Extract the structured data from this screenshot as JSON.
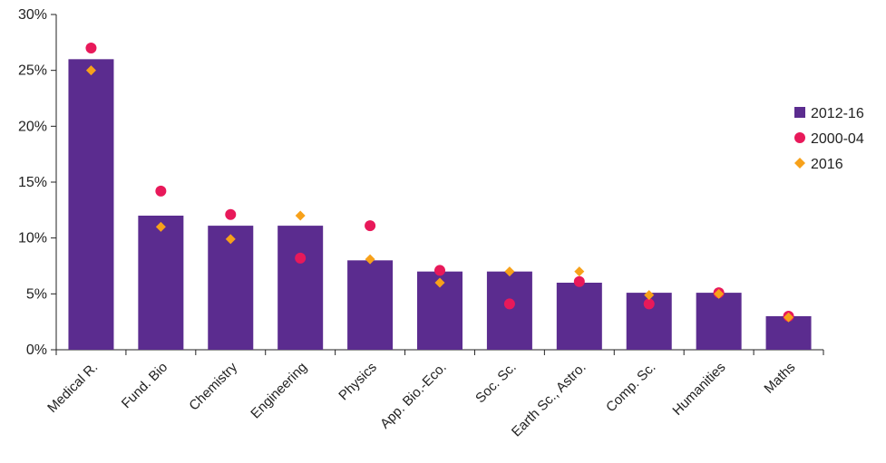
{
  "chart_data": {
    "type": "bar",
    "title": "",
    "xlabel": "",
    "ylabel": "",
    "ylim": [
      0,
      30
    ],
    "yticks": [
      {
        "value": 0,
        "label": "0%"
      },
      {
        "value": 5,
        "label": "5%"
      },
      {
        "value": 10,
        "label": "10%"
      },
      {
        "value": 15,
        "label": "15%"
      },
      {
        "value": 20,
        "label": "20%"
      },
      {
        "value": 25,
        "label": "25%"
      },
      {
        "value": 30,
        "label": "30%"
      }
    ],
    "grid": false,
    "legend_position": "right",
    "categories": [
      "Medical R.",
      "Fund. Bio",
      "Chemistry",
      "Engineering",
      "Physics",
      "App. Bio.-Eco.",
      "Soc. Sc.",
      "Earth Sc., Astro.",
      "Comp. Sc.",
      "Humanities",
      "Maths"
    ],
    "series": [
      {
        "name": "2012-16",
        "kind": "bar",
        "marker": "square",
        "color": "#5b2c8f",
        "values": [
          26,
          12,
          11.1,
          11.1,
          8,
          7,
          7,
          6,
          5.1,
          5.1,
          3
        ]
      },
      {
        "name": "2000-04",
        "kind": "point",
        "marker": "circle",
        "color": "#e8195a",
        "values": [
          27,
          14.2,
          12.1,
          8.2,
          11.1,
          7.1,
          4.1,
          6.1,
          4.1,
          5.1,
          3
        ]
      },
      {
        "name": "2016",
        "kind": "point",
        "marker": "diamond",
        "color": "#f7a11a",
        "values": [
          25,
          11,
          9.9,
          12,
          8.1,
          6,
          7,
          7,
          4.9,
          5,
          2.9
        ]
      }
    ]
  }
}
